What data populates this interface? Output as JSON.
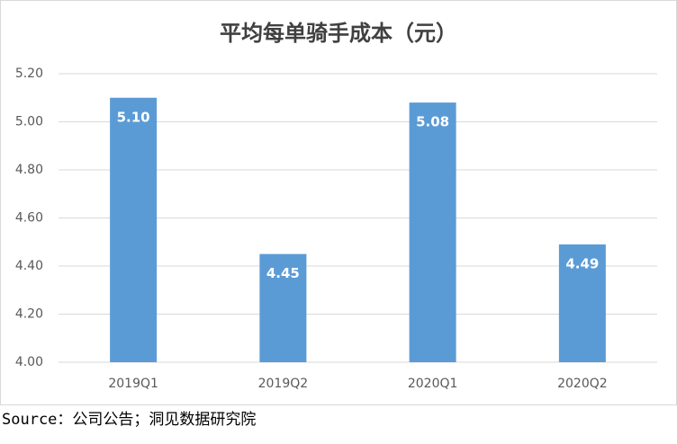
{
  "chart_data": {
    "type": "bar",
    "title": "平均每单骑手成本（元）",
    "categories": [
      "2019Q1",
      "2019Q2",
      "2020Q1",
      "2020Q2"
    ],
    "values": [
      5.1,
      4.45,
      5.08,
      4.49
    ],
    "value_labels": [
      "5.10",
      "4.45",
      "5.08",
      "4.49"
    ],
    "color": "#5b9bd5",
    "ylim": [
      4.0,
      5.2
    ],
    "yticks": [
      {
        "value": 4.0,
        "label": "4.00"
      },
      {
        "value": 4.2,
        "label": "4.20"
      },
      {
        "value": 4.4,
        "label": "4.40"
      },
      {
        "value": 4.6,
        "label": "4.60"
      },
      {
        "value": 4.8,
        "label": "4.80"
      },
      {
        "value": 5.0,
        "label": "5.00"
      },
      {
        "value": 5.2,
        "label": "5.20"
      }
    ],
    "grid": true
  },
  "source": "Source：公司公告；洞见数据研究院"
}
